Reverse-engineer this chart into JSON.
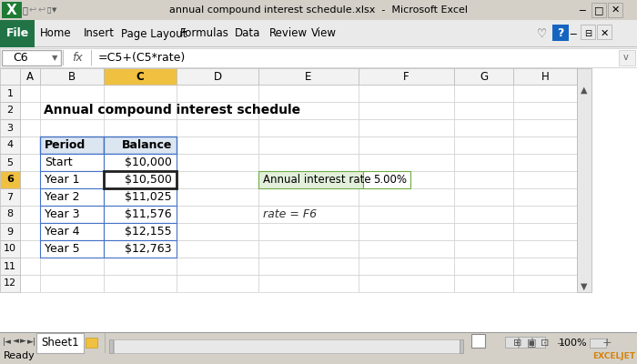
{
  "title_bar_text": "annual compound interest schedule.xlsx  -  Microsoft Excel",
  "formula_bar_cell": "C6",
  "formula_bar_formula": "=C5+(C5*rate)",
  "sheet_title": "Annual compound interest schedule",
  "col_headers": [
    "A",
    "B",
    "C",
    "D",
    "E",
    "F",
    "G",
    "H"
  ],
  "row_numbers": [
    "1",
    "2",
    "3",
    "4",
    "5",
    "6",
    "7",
    "8",
    "9",
    "10",
    "11",
    "12"
  ],
  "table_headers": [
    "Period",
    "Balance"
  ],
  "table_data": [
    [
      "Start",
      "$10,000"
    ],
    [
      "Year 1",
      "$10,500"
    ],
    [
      "Year 2",
      "$11,025"
    ],
    [
      "Year 3",
      "$11,576"
    ],
    [
      "Year 4",
      "$12,155"
    ],
    [
      "Year 5",
      "$12,763"
    ]
  ],
  "rate_label": "Annual interest rate",
  "rate_value": "5.00%",
  "note_text": "rate = F6",
  "sheet_tab": "Sheet1",
  "ribbon_tabs": [
    "Home",
    "Insert",
    "Page Layout",
    "Formulas",
    "Data",
    "Review",
    "View"
  ],
  "title_bar_bg": "#d4d0c8",
  "ribbon_bg": "#eaeaea",
  "file_btn_color": "#217346",
  "formula_bar_bg": "#ffffff",
  "grid_bg": "#ffffff",
  "col_header_bg": "#f2f2f2",
  "col_header_active_bg": "#f0c040",
  "row_header_bg": "#f2f2f2",
  "row_header_active_bg": "#f0c040",
  "table_header_bg": "#dce6f1",
  "table_border_color": "#4472c4",
  "selected_cell_border": "#1f1f1f",
  "rate_box_bg": "#e2efda",
  "rate_box_border": "#70ad47",
  "rate_val_bg": "#ffffff",
  "status_bar_bg": "#d4d0c8",
  "grid_line_color": "#d0d0d0",
  "exceljet_color": "#d4820a"
}
